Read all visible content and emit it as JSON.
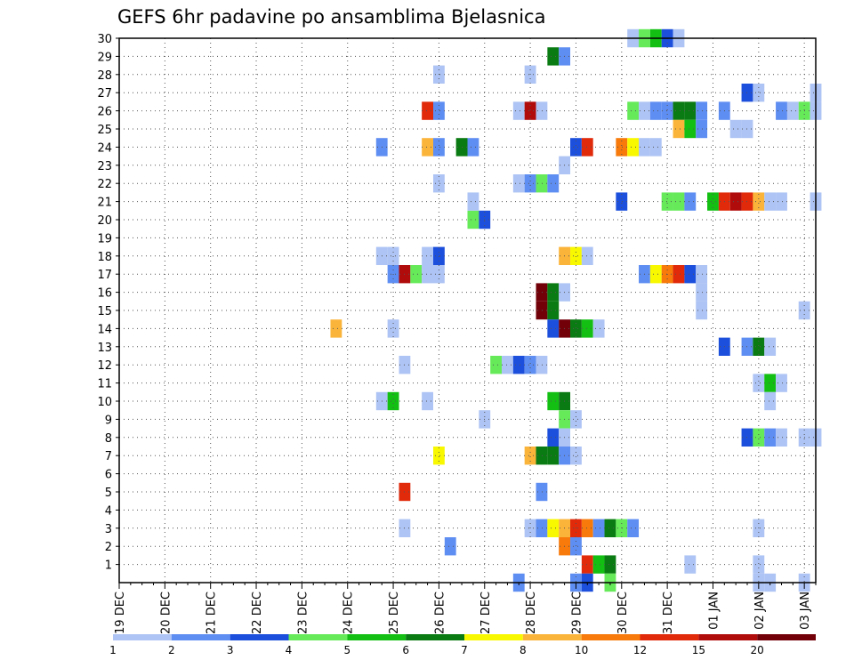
{
  "chart_data": {
    "type": "heatmap",
    "title": "GEFS 6hr padavine po ansamblima Bjelasnica",
    "x_tick_labels": [
      "19 DEC",
      "20 DEC",
      "21 DEC",
      "22 DEC",
      "23 DEC",
      "24 DEC",
      "25 DEC",
      "26 DEC",
      "27 DEC",
      "28 DEC",
      "29 DEC",
      "30 DEC",
      "31 DEC",
      "01 JAN",
      "02 JAN",
      "03 JAN"
    ],
    "y_tick_labels": [
      "1",
      "2",
      "3",
      "4",
      "5",
      "6",
      "7",
      "8",
      "9",
      "10",
      "11",
      "12",
      "13",
      "14",
      "15",
      "16",
      "17",
      "18",
      "19",
      "20",
      "21",
      "22",
      "23",
      "24",
      "25",
      "26",
      "27",
      "28",
      "29",
      "30"
    ],
    "x_unit": "6-hour step (0 = 19 DEC 00z)",
    "y_unit": "ensemble member",
    "x_range": [
      0,
      61
    ],
    "y_range": [
      0,
      30
    ],
    "grid": true,
    "colorbar": {
      "labels": [
        "1",
        "2",
        "3",
        "4",
        "5",
        "6",
        "7",
        "8",
        "10",
        "12",
        "15",
        "20"
      ],
      "colors": [
        "#aec4f4",
        "#5f8ef2",
        "#1c4fdc",
        "#66ea5a",
        "#13bf13",
        "#0a7a12",
        "#f8f800",
        "#fbb43a",
        "#f77a0a",
        "#e02a0a",
        "#b00c0c",
        "#720009"
      ]
    },
    "cells": [
      {
        "x": 45,
        "y": 30,
        "c": 1
      },
      {
        "x": 46,
        "y": 30,
        "c": 4
      },
      {
        "x": 47,
        "y": 30,
        "c": 5
      },
      {
        "x": 48,
        "y": 30,
        "c": 3
      },
      {
        "x": 49,
        "y": 30,
        "c": 1
      },
      {
        "x": 38,
        "y": 29,
        "c": 6
      },
      {
        "x": 39,
        "y": 29,
        "c": 2
      },
      {
        "x": 28,
        "y": 28,
        "c": 1
      },
      {
        "x": 36,
        "y": 28,
        "c": 1
      },
      {
        "x": 55,
        "y": 27,
        "c": 3
      },
      {
        "x": 56,
        "y": 27,
        "c": 1
      },
      {
        "x": 61,
        "y": 27,
        "c": 1
      },
      {
        "x": 27,
        "y": 26,
        "c": 10
      },
      {
        "x": 28,
        "y": 26,
        "c": 2
      },
      {
        "x": 35,
        "y": 26,
        "c": 1
      },
      {
        "x": 36,
        "y": 26,
        "c": 11
      },
      {
        "x": 37,
        "y": 26,
        "c": 1
      },
      {
        "x": 45,
        "y": 26,
        "c": 4
      },
      {
        "x": 46,
        "y": 26,
        "c": 1
      },
      {
        "x": 47,
        "y": 26,
        "c": 2
      },
      {
        "x": 48,
        "y": 26,
        "c": 2
      },
      {
        "x": 49,
        "y": 26,
        "c": 6
      },
      {
        "x": 50,
        "y": 26,
        "c": 6
      },
      {
        "x": 51,
        "y": 26,
        "c": 2
      },
      {
        "x": 53,
        "y": 26,
        "c": 2
      },
      {
        "x": 58,
        "y": 26,
        "c": 2
      },
      {
        "x": 59,
        "y": 26,
        "c": 1
      },
      {
        "x": 60,
        "y": 26,
        "c": 4
      },
      {
        "x": 61,
        "y": 26,
        "c": 1
      },
      {
        "x": 49,
        "y": 25,
        "c": 8
      },
      {
        "x": 50,
        "y": 25,
        "c": 5
      },
      {
        "x": 51,
        "y": 25,
        "c": 2
      },
      {
        "x": 54,
        "y": 25,
        "c": 1
      },
      {
        "x": 55,
        "y": 25,
        "c": 1
      },
      {
        "x": 23,
        "y": 24,
        "c": 2
      },
      {
        "x": 27,
        "y": 24,
        "c": 8
      },
      {
        "x": 28,
        "y": 24,
        "c": 2
      },
      {
        "x": 30,
        "y": 24,
        "c": 6
      },
      {
        "x": 31,
        "y": 24,
        "c": 2
      },
      {
        "x": 40,
        "y": 24,
        "c": 3
      },
      {
        "x": 41,
        "y": 24,
        "c": 10
      },
      {
        "x": 44,
        "y": 24,
        "c": 9
      },
      {
        "x": 45,
        "y": 24,
        "c": 7
      },
      {
        "x": 46,
        "y": 24,
        "c": 1
      },
      {
        "x": 47,
        "y": 24,
        "c": 1
      },
      {
        "x": 39,
        "y": 23,
        "c": 1
      },
      {
        "x": 28,
        "y": 22,
        "c": 1
      },
      {
        "x": 35,
        "y": 22,
        "c": 1
      },
      {
        "x": 36,
        "y": 22,
        "c": 2
      },
      {
        "x": 37,
        "y": 22,
        "c": 4
      },
      {
        "x": 38,
        "y": 22,
        "c": 2
      },
      {
        "x": 44,
        "y": 21,
        "c": 3
      },
      {
        "x": 48,
        "y": 21,
        "c": 4
      },
      {
        "x": 49,
        "y": 21,
        "c": 4
      },
      {
        "x": 50,
        "y": 21,
        "c": 2
      },
      {
        "x": 52,
        "y": 21,
        "c": 5
      },
      {
        "x": 53,
        "y": 21,
        "c": 10
      },
      {
        "x": 54,
        "y": 21,
        "c": 11
      },
      {
        "x": 55,
        "y": 21,
        "c": 10
      },
      {
        "x": 56,
        "y": 21,
        "c": 8
      },
      {
        "x": 57,
        "y": 21,
        "c": 1
      },
      {
        "x": 58,
        "y": 21,
        "c": 1
      },
      {
        "x": 61,
        "y": 21,
        "c": 1
      },
      {
        "x": 31,
        "y": 20,
        "c": 4
      },
      {
        "x": 32,
        "y": 20,
        "c": 3
      },
      {
        "x": 31,
        "y": 21,
        "c": 1
      },
      {
        "x": 23,
        "y": 18,
        "c": 1
      },
      {
        "x": 24,
        "y": 18,
        "c": 1
      },
      {
        "x": 27,
        "y": 18,
        "c": 1
      },
      {
        "x": 28,
        "y": 18,
        "c": 3
      },
      {
        "x": 39,
        "y": 18,
        "c": 8
      },
      {
        "x": 40,
        "y": 18,
        "c": 7
      },
      {
        "x": 41,
        "y": 18,
        "c": 1
      },
      {
        "x": 24,
        "y": 17,
        "c": 2
      },
      {
        "x": 25,
        "y": 17,
        "c": 11
      },
      {
        "x": 26,
        "y": 17,
        "c": 4
      },
      {
        "x": 27,
        "y": 17,
        "c": 1
      },
      {
        "x": 28,
        "y": 17,
        "c": 1
      },
      {
        "x": 46,
        "y": 17,
        "c": 2
      },
      {
        "x": 47,
        "y": 17,
        "c": 7
      },
      {
        "x": 48,
        "y": 17,
        "c": 9
      },
      {
        "x": 49,
        "y": 17,
        "c": 10
      },
      {
        "x": 50,
        "y": 17,
        "c": 3
      },
      {
        "x": 51,
        "y": 17,
        "c": 1
      },
      {
        "x": 37,
        "y": 16,
        "c": 12
      },
      {
        "x": 38,
        "y": 16,
        "c": 6
      },
      {
        "x": 39,
        "y": 16,
        "c": 1
      },
      {
        "x": 51,
        "y": 16,
        "c": 1
      },
      {
        "x": 37,
        "y": 15,
        "c": 12
      },
      {
        "x": 38,
        "y": 15,
        "c": 6
      },
      {
        "x": 60,
        "y": 15,
        "c": 1
      },
      {
        "x": 51,
        "y": 15,
        "c": 1
      },
      {
        "x": 19,
        "y": 14,
        "c": 8
      },
      {
        "x": 24,
        "y": 14,
        "c": 1
      },
      {
        "x": 38,
        "y": 14,
        "c": 3
      },
      {
        "x": 39,
        "y": 14,
        "c": 12
      },
      {
        "x": 40,
        "y": 14,
        "c": 6
      },
      {
        "x": 41,
        "y": 14,
        "c": 5
      },
      {
        "x": 42,
        "y": 14,
        "c": 1
      },
      {
        "x": 53,
        "y": 13,
        "c": 3
      },
      {
        "x": 55,
        "y": 13,
        "c": 2
      },
      {
        "x": 56,
        "y": 13,
        "c": 6
      },
      {
        "x": 57,
        "y": 13,
        "c": 1
      },
      {
        "x": 25,
        "y": 12,
        "c": 1
      },
      {
        "x": 33,
        "y": 12,
        "c": 4
      },
      {
        "x": 34,
        "y": 12,
        "c": 1
      },
      {
        "x": 35,
        "y": 12,
        "c": 3
      },
      {
        "x": 36,
        "y": 12,
        "c": 2
      },
      {
        "x": 37,
        "y": 12,
        "c": 1
      },
      {
        "x": 56,
        "y": 11,
        "c": 1
      },
      {
        "x": 57,
        "y": 11,
        "c": 5
      },
      {
        "x": 58,
        "y": 11,
        "c": 1
      },
      {
        "x": 23,
        "y": 10,
        "c": 1
      },
      {
        "x": 24,
        "y": 10,
        "c": 5
      },
      {
        "x": 27,
        "y": 10,
        "c": 1
      },
      {
        "x": 38,
        "y": 10,
        "c": 5
      },
      {
        "x": 39,
        "y": 10,
        "c": 6
      },
      {
        "x": 57,
        "y": 10,
        "c": 1
      },
      {
        "x": 32,
        "y": 9,
        "c": 1
      },
      {
        "x": 39,
        "y": 9,
        "c": 4
      },
      {
        "x": 40,
        "y": 9,
        "c": 1
      },
      {
        "x": 38,
        "y": 8,
        "c": 3
      },
      {
        "x": 39,
        "y": 8,
        "c": 1
      },
      {
        "x": 55,
        "y": 8,
        "c": 3
      },
      {
        "x": 56,
        "y": 8,
        "c": 4
      },
      {
        "x": 57,
        "y": 8,
        "c": 2
      },
      {
        "x": 58,
        "y": 8,
        "c": 1
      },
      {
        "x": 60,
        "y": 8,
        "c": 1
      },
      {
        "x": 61,
        "y": 8,
        "c": 1
      },
      {
        "x": 28,
        "y": 7,
        "c": 7
      },
      {
        "x": 36,
        "y": 7,
        "c": 8
      },
      {
        "x": 37,
        "y": 7,
        "c": 6
      },
      {
        "x": 38,
        "y": 7,
        "c": 6
      },
      {
        "x": 39,
        "y": 7,
        "c": 2
      },
      {
        "x": 40,
        "y": 7,
        "c": 1
      },
      {
        "x": 25,
        "y": 5,
        "c": 10
      },
      {
        "x": 37,
        "y": 5,
        "c": 2
      },
      {
        "x": 25,
        "y": 3,
        "c": 1
      },
      {
        "x": 36,
        "y": 3,
        "c": 1
      },
      {
        "x": 37,
        "y": 3,
        "c": 2
      },
      {
        "x": 38,
        "y": 3,
        "c": 7
      },
      {
        "x": 39,
        "y": 3,
        "c": 8
      },
      {
        "x": 40,
        "y": 3,
        "c": 10
      },
      {
        "x": 41,
        "y": 3,
        "c": 9
      },
      {
        "x": 42,
        "y": 3,
        "c": 2
      },
      {
        "x": 43,
        "y": 3,
        "c": 6
      },
      {
        "x": 44,
        "y": 3,
        "c": 4
      },
      {
        "x": 45,
        "y": 3,
        "c": 2
      },
      {
        "x": 56,
        "y": 3,
        "c": 1
      },
      {
        "x": 29,
        "y": 2,
        "c": 2
      },
      {
        "x": 39,
        "y": 2,
        "c": 9
      },
      {
        "x": 40,
        "y": 2,
        "c": 2
      },
      {
        "x": 41,
        "y": 1,
        "c": 10
      },
      {
        "x": 42,
        "y": 1,
        "c": 5
      },
      {
        "x": 43,
        "y": 1,
        "c": 6
      },
      {
        "x": 50,
        "y": 1,
        "c": 1
      },
      {
        "x": 56,
        "y": 1,
        "c": 1
      },
      {
        "x": 35,
        "y": 0,
        "c": 2
      },
      {
        "x": 40,
        "y": 0,
        "c": 2
      },
      {
        "x": 41,
        "y": 0,
        "c": 3
      },
      {
        "x": 43,
        "y": 0,
        "c": 4
      },
      {
        "x": 56,
        "y": 0,
        "c": 1
      },
      {
        "x": 57,
        "y": 0,
        "c": 1
      },
      {
        "x": 60,
        "y": 0,
        "c": 1
      }
    ]
  }
}
